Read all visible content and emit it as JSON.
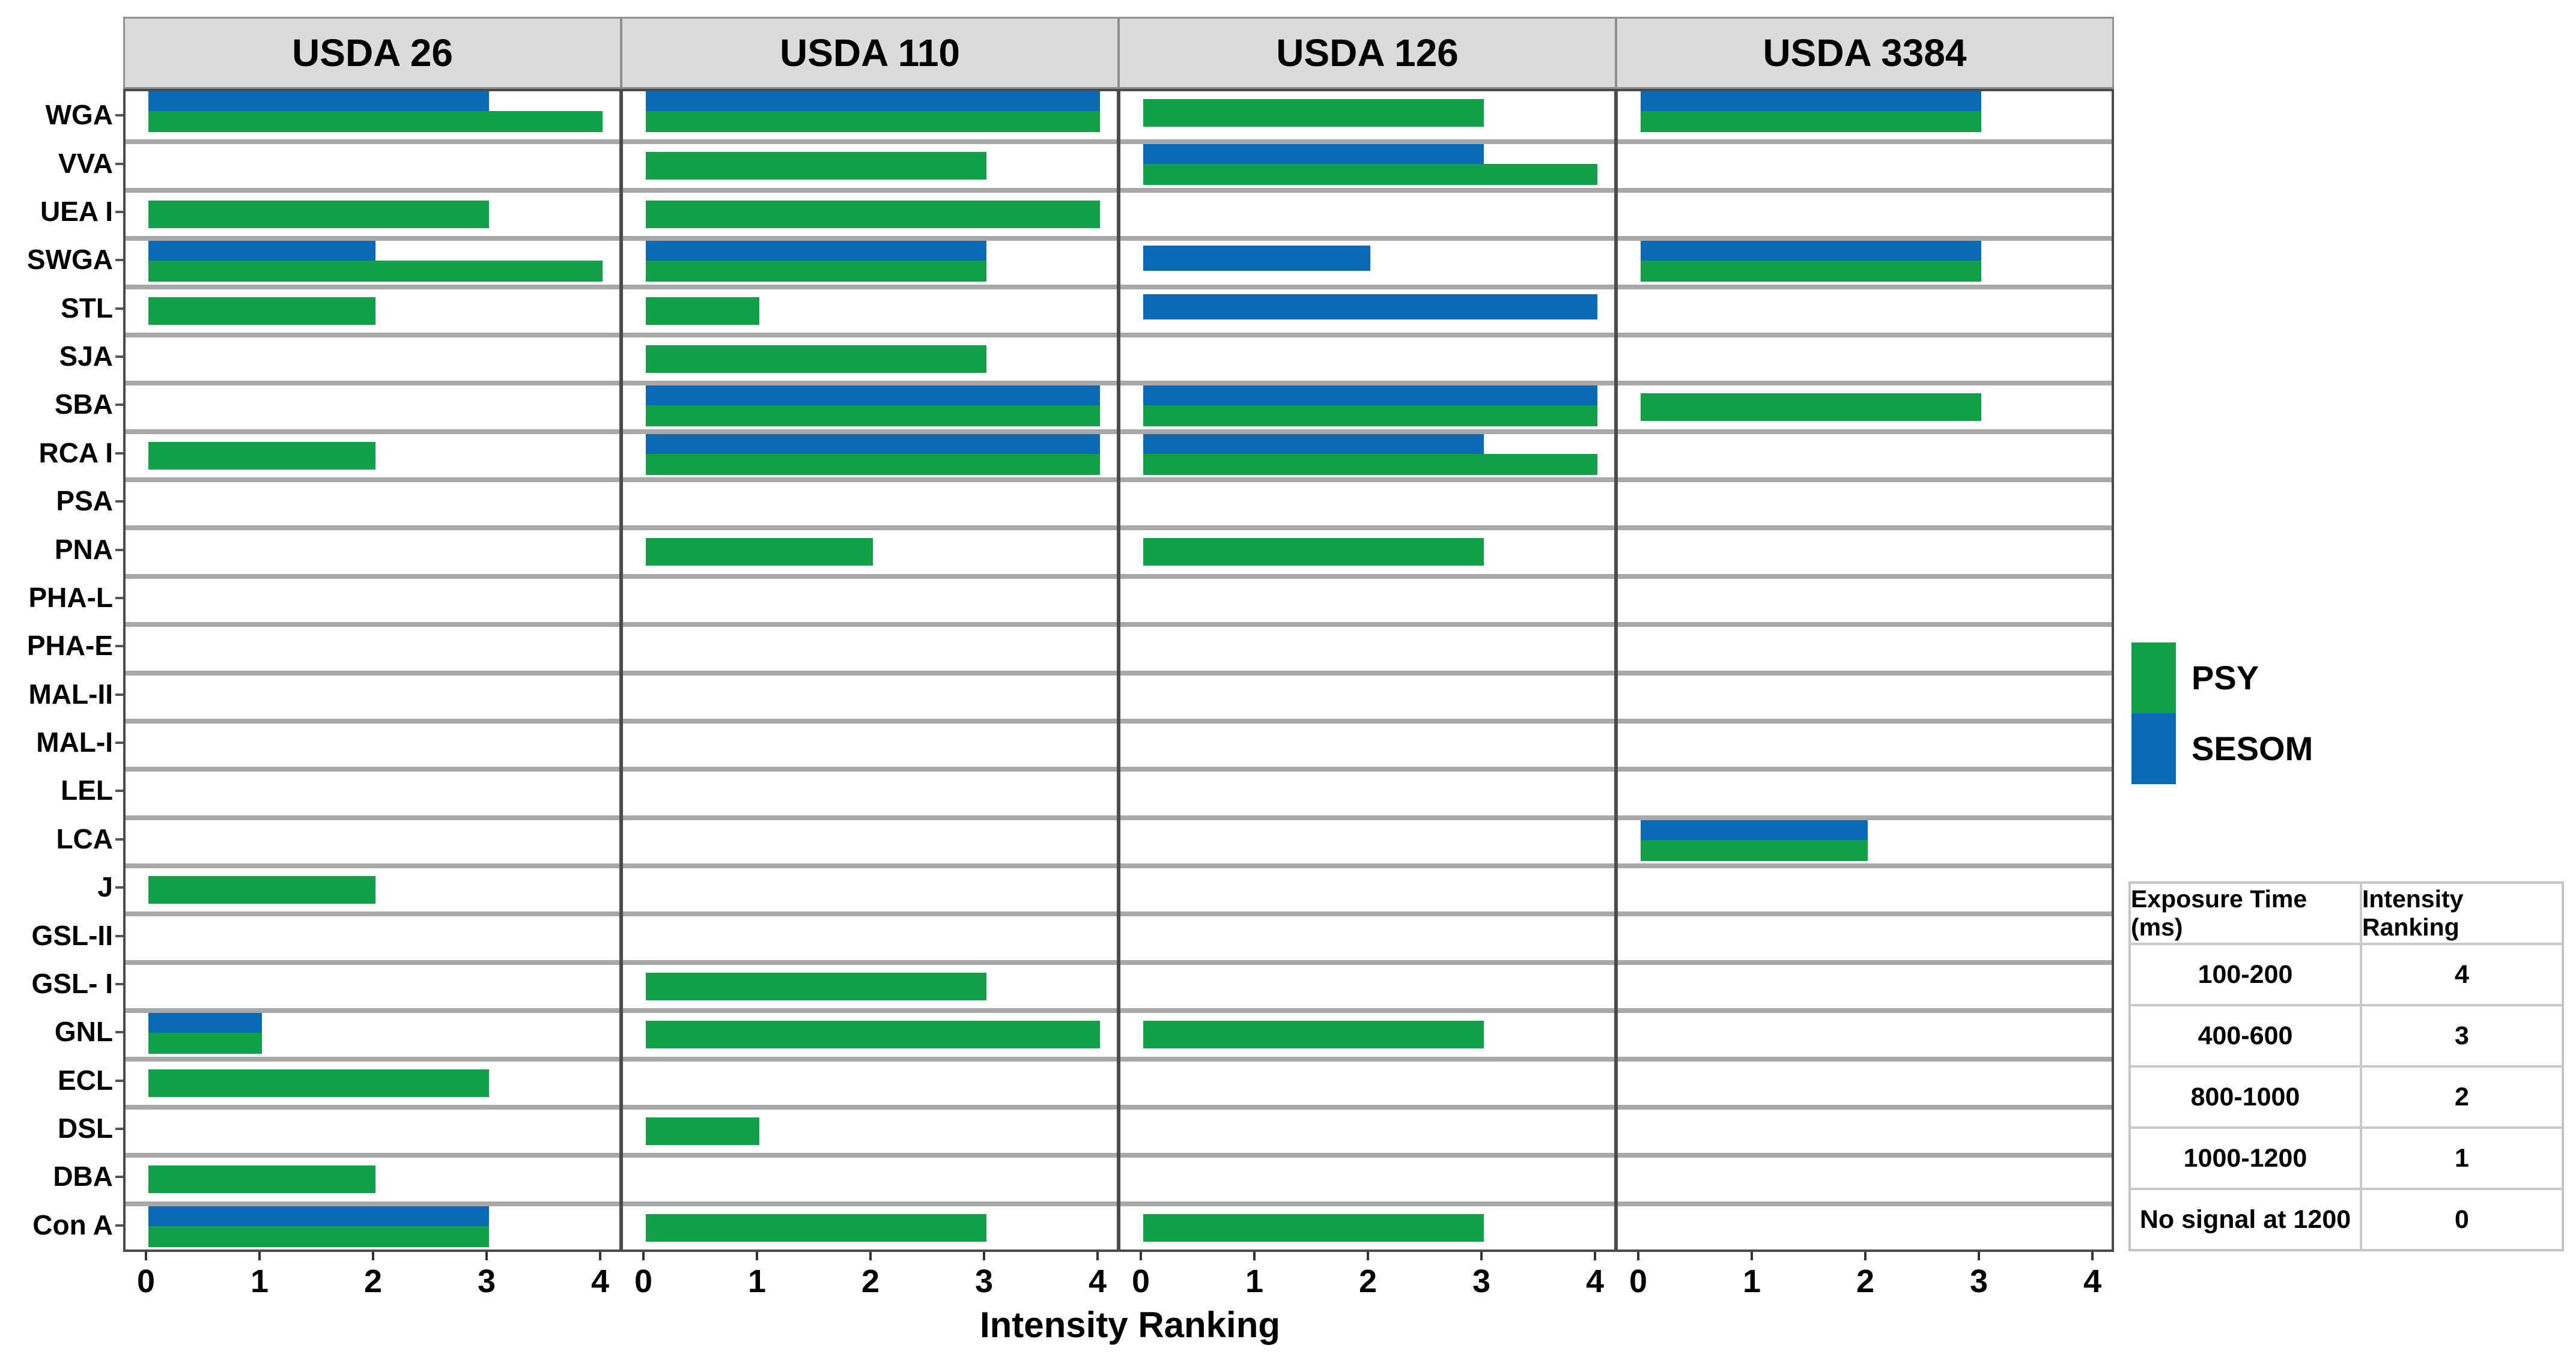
{
  "chart_data": {
    "type": "bar",
    "orientation": "horizontal",
    "title": "",
    "xlabel": "Intensity Ranking",
    "ylabel": "",
    "xlim": [
      0,
      4.2
    ],
    "x_ticks": [
      0,
      1,
      2,
      3,
      4
    ],
    "grid": "row-separators",
    "legend_position": "right",
    "categories": [
      "WGA",
      "VVA",
      "UEA I",
      "SWGA",
      "STL",
      "SJA",
      "SBA",
      "RCA I",
      "PSA",
      "PNA",
      "PHA-L",
      "PHA-E",
      "MAL-II",
      "MAL-I",
      "LEL",
      "LCA",
      "J",
      "GSL-II",
      "GSL- I",
      "GNL",
      "ECL",
      "DSL",
      "DBA",
      "Con A"
    ],
    "legend": [
      {
        "name": "PSY",
        "color": "#11A048"
      },
      {
        "name": "SESOM",
        "color": "#0A69B4"
      }
    ],
    "panels": [
      {
        "title": "USDA 26",
        "series": [
          {
            "name": "PSY",
            "values": [
              4,
              0,
              3,
              4,
              2,
              0,
              0,
              2,
              0,
              0,
              0,
              0,
              0,
              0,
              0,
              0,
              2,
              0,
              0,
              1,
              3,
              0,
              2,
              3
            ]
          },
          {
            "name": "SESOM",
            "values": [
              3,
              0,
              0,
              2,
              0,
              0,
              0,
              0,
              0,
              0,
              0,
              0,
              0,
              0,
              0,
              0,
              0,
              0,
              0,
              1,
              0,
              0,
              0,
              3
            ]
          }
        ]
      },
      {
        "title": "USDA 110",
        "series": [
          {
            "name": "PSY",
            "values": [
              4,
              3,
              4,
              3,
              1,
              3,
              4,
              4,
              0,
              2,
              0,
              0,
              0,
              0,
              0,
              0,
              0,
              0,
              3,
              4,
              0,
              1,
              0,
              3
            ]
          },
          {
            "name": "SESOM",
            "values": [
              4,
              0,
              0,
              3,
              0,
              0,
              4,
              4,
              0,
              0,
              0,
              0,
              0,
              0,
              0,
              0,
              0,
              0,
              0,
              0,
              0,
              0,
              0,
              0
            ]
          }
        ]
      },
      {
        "title": "USDA 126",
        "series": [
          {
            "name": "PSY",
            "values": [
              3,
              4,
              0,
              0,
              0,
              0,
              4,
              4,
              0,
              3,
              0,
              0,
              0,
              0,
              0,
              0,
              0,
              0,
              0,
              3,
              0,
              0,
              0,
              3
            ]
          },
          {
            "name": "SESOM",
            "values": [
              0,
              3,
              0,
              2,
              4,
              0,
              4,
              3,
              0,
              0,
              0,
              0,
              0,
              0,
              0,
              0,
              0,
              0,
              0,
              0,
              0,
              0,
              0,
              0
            ]
          }
        ]
      },
      {
        "title": "USDA 3384",
        "series": [
          {
            "name": "PSY",
            "values": [
              3,
              0,
              0,
              3,
              0,
              0,
              3,
              0,
              0,
              0,
              0,
              0,
              0,
              0,
              0,
              2,
              0,
              0,
              0,
              0,
              0,
              0,
              0,
              0
            ]
          },
          {
            "name": "SESOM",
            "values": [
              3,
              0,
              0,
              3,
              0,
              0,
              0,
              0,
              0,
              0,
              0,
              0,
              0,
              0,
              0,
              2,
              0,
              0,
              0,
              0,
              0,
              0,
              0,
              0
            ]
          }
        ]
      }
    ]
  },
  "ranking_table": {
    "headers": [
      "Exposure Time (ms)",
      "Intensity Ranking"
    ],
    "rows": [
      [
        "100-200",
        "4"
      ],
      [
        "400-600",
        "3"
      ],
      [
        "800-1000",
        "2"
      ],
      [
        "1000-1200",
        "1"
      ],
      [
        "No signal at 1200",
        "0"
      ]
    ]
  },
  "colors": {
    "psy": "#11A048",
    "sesom": "#0A69B4",
    "title_band": "#DBDBDB",
    "row_separator": "#A8A8A8",
    "plot_border": "#4A4A4A",
    "table_border": "#C9C9C9"
  }
}
